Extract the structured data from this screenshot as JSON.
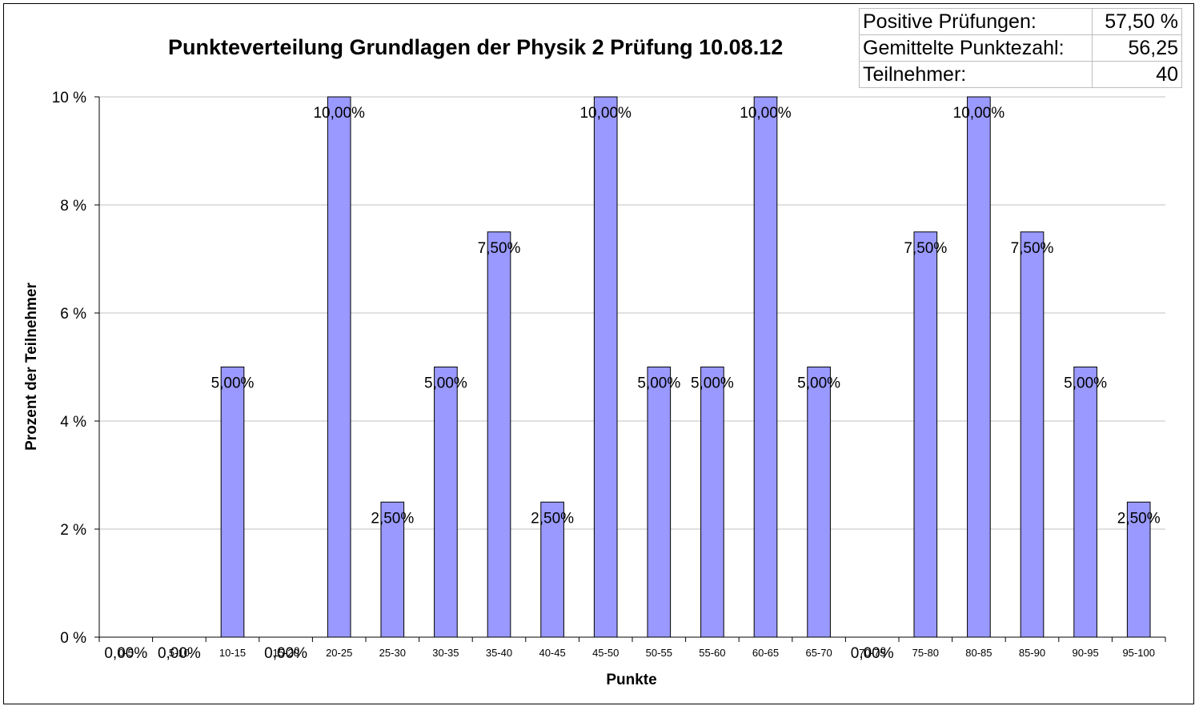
{
  "stats": {
    "rows": [
      {
        "label": "Positive Prüfungen:",
        "value": "57,50 %"
      },
      {
        "label": "Gemittelte Punktezahl:",
        "value": "56,25"
      },
      {
        "label": "Teilnehmer:",
        "value": "40"
      }
    ]
  },
  "chart_data": {
    "type": "bar",
    "title": "Punkteverteilung Grundlagen der Physik 2 Prüfung 10.08.12",
    "xlabel": "Punkte",
    "ylabel": "Prozent der Teilnehmer",
    "ylim": [
      0,
      10
    ],
    "yticks": [
      0,
      2,
      4,
      6,
      8,
      10
    ],
    "ytick_labels": [
      "0 %",
      "2 %",
      "4 %",
      "6 %",
      "8 %",
      "10 %"
    ],
    "grid": true,
    "legend": "none",
    "bar_color": "#9999ff",
    "categories": [
      "0-5",
      "5-10",
      "10-15",
      "15-20",
      "20-25",
      "25-30",
      "30-35",
      "35-40",
      "40-45",
      "45-50",
      "50-55",
      "55-60",
      "60-65",
      "65-70",
      "70-75",
      "75-80",
      "80-85",
      "85-90",
      "90-95",
      "95-100"
    ],
    "values": [
      0,
      0,
      5,
      0,
      10,
      2.5,
      5,
      7.5,
      2.5,
      10,
      5,
      5,
      10,
      5,
      0,
      7.5,
      10,
      7.5,
      5,
      2.5
    ],
    "data_labels": [
      "0,00%",
      "0,00%",
      "5,00%",
      "0,00%",
      "10,00%",
      "2,50%",
      "5,00%",
      "7,50%",
      "2,50%",
      "10,00%",
      "5,00%",
      "5,00%",
      "10,00%",
      "5,00%",
      "0,00%",
      "7,50%",
      "10,00%",
      "7,50%",
      "5,00%",
      "2,50%"
    ]
  }
}
